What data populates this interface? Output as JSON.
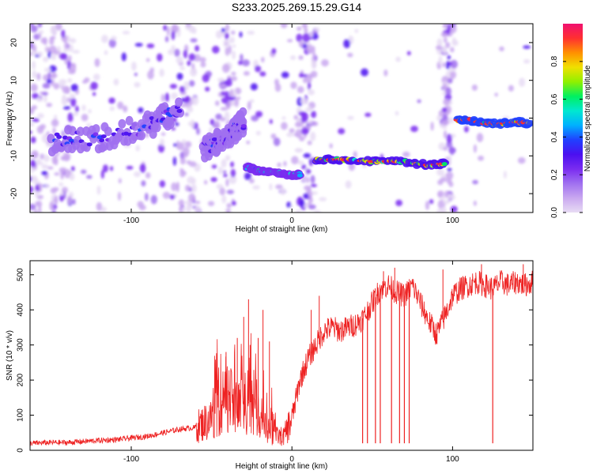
{
  "title": "S233.2025.269.15.29.G14",
  "colors": {
    "line": "#ee2222",
    "frame": "#000000",
    "colormap": [
      "#e8dcf4",
      "#c9a8f0",
      "#a070f0",
      "#7a2cf0",
      "#4b10f0",
      "#2040ff",
      "#00b0ff",
      "#00e8d0",
      "#00f060",
      "#90f000",
      "#f0e000",
      "#ff9000",
      "#ff3030",
      "#f01070"
    ]
  },
  "chart_data": [
    {
      "type": "heatmap",
      "title": "S233.2025.269.15.29.G14",
      "xlabel": "Height of straight line (km)",
      "ylabel": "Frequency (Hz)",
      "xlim": [
        -163,
        150
      ],
      "ylim": [
        -25,
        25
      ],
      "xticks": [
        -100,
        0,
        100
      ],
      "yticks": [
        -20,
        -10,
        0,
        10,
        20
      ],
      "colorbar": {
        "label": "Normalized spectral amplitude",
        "range": [
          0.0,
          1.0
        ],
        "ticks": [
          0.0,
          0.2,
          0.4,
          0.6,
          0.8
        ]
      },
      "ridges": [
        {
          "x": [
            -150,
            -130,
            -110,
            -90,
            -80,
            -70
          ],
          "freq": [
            -6,
            -5.5,
            -5,
            -2,
            0,
            2
          ],
          "amp": 0.35
        },
        {
          "x": [
            -55,
            -45,
            -35,
            -30
          ],
          "freq": [
            -8,
            -6,
            -3,
            -1
          ],
          "amp": 0.35
        },
        {
          "x": [
            -28,
            -20,
            -10,
            0,
            5
          ],
          "freq": [
            -13,
            -14,
            -14.5,
            -15,
            -15
          ],
          "amp": 0.55
        },
        {
          "x": [
            15,
            30,
            50,
            70,
            85,
            95
          ],
          "freq": [
            -11,
            -11,
            -11.5,
            -11.5,
            -12.5,
            -12
          ],
          "amp": 0.75
        },
        {
          "x": [
            103,
            110,
            120,
            130,
            140,
            148
          ],
          "freq": [
            -0.5,
            -0.5,
            -1.5,
            -1.5,
            -1,
            -1.5
          ],
          "amp": 0.9
        }
      ]
    },
    {
      "type": "line",
      "xlabel": "Height of straight line (km)",
      "ylabel": "SNR (10 * v/v)",
      "xlim": [
        -163,
        150
      ],
      "ylim": [
        0,
        540
      ],
      "xticks": [
        -100,
        0,
        100
      ],
      "yticks": [
        0,
        100,
        200,
        300,
        400,
        500
      ],
      "series": [
        {
          "name": "SNR",
          "x": [
            -163,
            -150,
            -140,
            -130,
            -120,
            -110,
            -100,
            -90,
            -80,
            -70,
            -60,
            -50,
            -45,
            -40,
            -35,
            -30,
            -25,
            -20,
            -15,
            -10,
            -5,
            0,
            5,
            10,
            15,
            20,
            25,
            30,
            35,
            40,
            45,
            50,
            55,
            60,
            65,
            70,
            75,
            80,
            85,
            90,
            95,
            100,
            105,
            110,
            115,
            120,
            125,
            130,
            135,
            140,
            145,
            150
          ],
          "y": [
            20,
            22,
            22,
            25,
            28,
            30,
            35,
            40,
            50,
            60,
            65,
            90,
            130,
            150,
            120,
            130,
            150,
            100,
            50,
            40,
            40,
            90,
            200,
            260,
            300,
            340,
            350,
            340,
            350,
            360,
            380,
            420,
            460,
            470,
            450,
            440,
            470,
            420,
            370,
            330,
            380,
            440,
            460,
            470,
            480,
            470,
            460,
            480,
            470,
            480,
            470,
            480
          ]
        }
      ],
      "dropouts": [
        {
          "x": 44,
          "y": 20
        },
        {
          "x": 47,
          "y": 20
        },
        {
          "x": 52,
          "y": 20
        },
        {
          "x": 55,
          "y": 20
        },
        {
          "x": 62,
          "y": 20
        },
        {
          "x": 67,
          "y": 20
        },
        {
          "x": 70,
          "y": 20
        },
        {
          "x": 73,
          "y": 20
        },
        {
          "x": 125,
          "y": 20
        }
      ],
      "spikes": [
        {
          "x": -46,
          "y": 200
        },
        {
          "x": -41,
          "y": 280
        },
        {
          "x": -34,
          "y": 320
        },
        {
          "x": -30,
          "y": 380
        },
        {
          "x": -27,
          "y": 430
        },
        {
          "x": -26,
          "y": 300
        },
        {
          "x": -21,
          "y": 320
        },
        {
          "x": -18,
          "y": 400
        },
        {
          "x": -14,
          "y": 310
        },
        {
          "x": 12,
          "y": 400
        },
        {
          "x": 17,
          "y": 440
        },
        {
          "x": 57,
          "y": 510
        },
        {
          "x": 64,
          "y": 520
        },
        {
          "x": 94,
          "y": 515
        },
        {
          "x": 118,
          "y": 530
        },
        {
          "x": 144,
          "y": 530
        }
      ]
    }
  ]
}
